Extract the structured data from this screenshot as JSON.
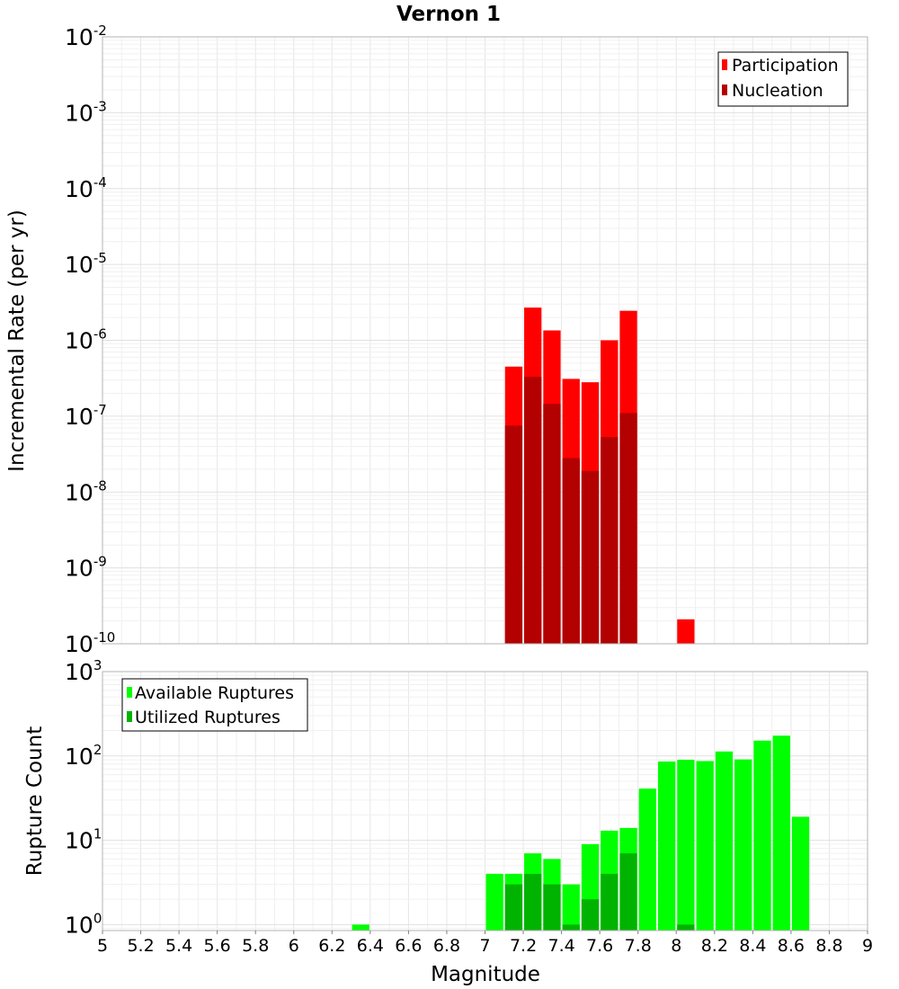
{
  "chart_data": [
    {
      "type": "bar",
      "title": "Vernon 1",
      "xlabel": "",
      "ylabel": "Incremental Rate (per yr)",
      "yscale": "log",
      "ylim": [
        1e-10,
        0.01
      ],
      "ytick_labels": [
        {
          "value": 1e-10,
          "base": "10",
          "exp": "-10"
        },
        {
          "value": 1e-09,
          "base": "10",
          "exp": "-9"
        },
        {
          "value": 1e-08,
          "base": "10",
          "exp": "-8"
        },
        {
          "value": 1e-07,
          "base": "10",
          "exp": "-7"
        },
        {
          "value": 1e-06,
          "base": "10",
          "exp": "-6"
        },
        {
          "value": 1e-05,
          "base": "10",
          "exp": "-5"
        },
        {
          "value": 0.0001,
          "base": "10",
          "exp": "-4"
        },
        {
          "value": 0.001,
          "base": "10",
          "exp": "-3"
        },
        {
          "value": 0.01,
          "base": "10",
          "exp": "-2"
        }
      ],
      "legend_position": "top-right",
      "series": [
        {
          "name": "Participation",
          "color": "#ff0000",
          "x": [
            7.15,
            7.25,
            7.35,
            7.45,
            7.55,
            7.65,
            7.75,
            8.05
          ],
          "values": [
            4.5e-07,
            2.7e-06,
            1.35e-06,
            3.1e-07,
            2.8e-07,
            1e-06,
            2.45e-06,
            2.1e-10
          ]
        },
        {
          "name": "Nucleation",
          "color": "#b30000",
          "x": [
            7.15,
            7.25,
            7.35,
            7.45,
            7.55,
            7.65,
            7.75
          ],
          "values": [
            7.5e-08,
            3.3e-07,
            1.45e-07,
            2.8e-08,
            1.9e-08,
            5.3e-08,
            1.1e-07
          ]
        }
      ]
    },
    {
      "type": "bar",
      "title": "",
      "xlabel": "Magnitude",
      "ylabel": "Rupture Count",
      "yscale": "log",
      "xlim": [
        5,
        9
      ],
      "ylim": [
        0.85,
        1000
      ],
      "xtick_labels": [
        "5",
        "5.2",
        "5.4",
        "5.6",
        "5.8",
        "6",
        "6.2",
        "6.4",
        "6.6",
        "6.8",
        "7",
        "7.2",
        "7.4",
        "7.6",
        "7.8",
        "8",
        "8.2",
        "8.4",
        "8.6",
        "8.8",
        "9"
      ],
      "ytick_labels": [
        {
          "value": 1,
          "base": "10",
          "exp": "0"
        },
        {
          "value": 10,
          "base": "10",
          "exp": "1"
        },
        {
          "value": 100,
          "base": "10",
          "exp": "2"
        },
        {
          "value": 1000,
          "base": "10",
          "exp": "3"
        }
      ],
      "legend_position": "top-left",
      "series": [
        {
          "name": "Available Ruptures",
          "color": "#00ff00",
          "x": [
            6.35,
            7.05,
            7.15,
            7.25,
            7.35,
            7.45,
            7.55,
            7.65,
            7.75,
            7.85,
            7.95,
            8.05,
            8.15,
            8.25,
            8.35,
            8.45,
            8.55,
            8.65
          ],
          "values": [
            1,
            4,
            4,
            7,
            6,
            3,
            9,
            13,
            14,
            41,
            86,
            90,
            87,
            113,
            91,
            152,
            174,
            19
          ]
        },
        {
          "name": "Utilized Ruptures",
          "color": "#00b300",
          "x": [
            7.15,
            7.25,
            7.35,
            7.45,
            7.55,
            7.65,
            7.75,
            8.05
          ],
          "values": [
            3,
            4,
            3,
            1,
            2,
            4,
            7,
            1
          ]
        }
      ]
    }
  ]
}
